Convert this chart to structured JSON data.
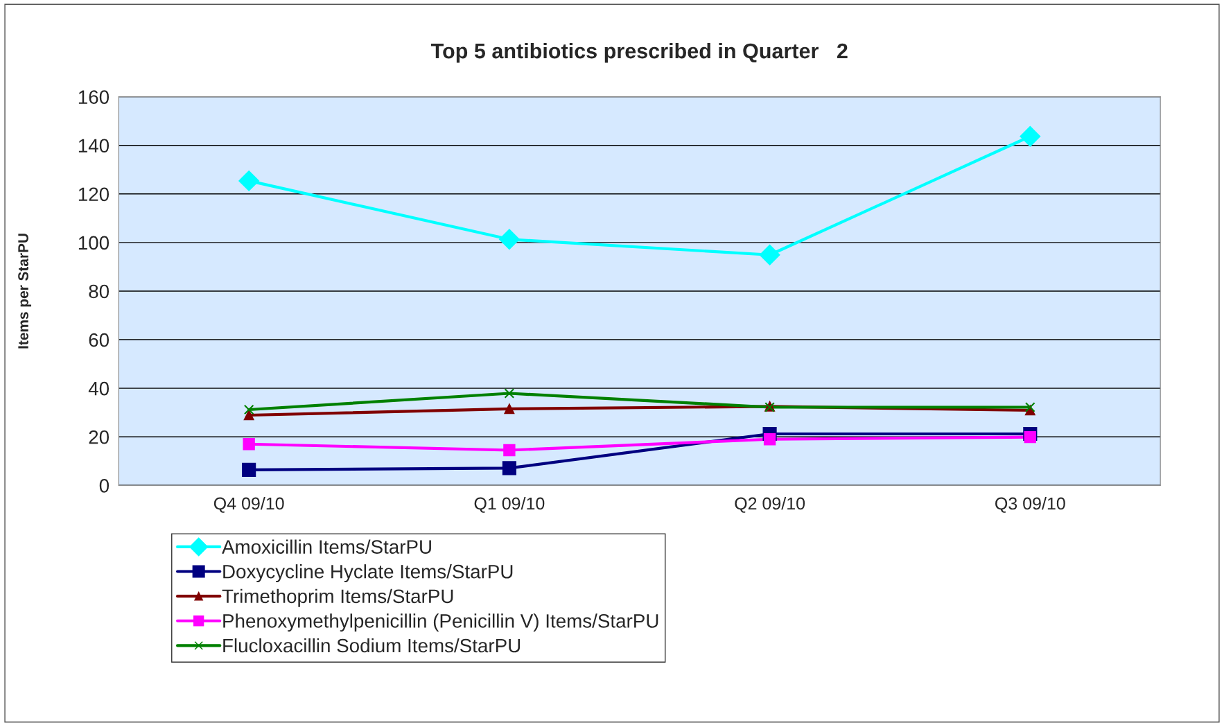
{
  "chart_data": {
    "type": "line",
    "title": "Top 5 antibiotics prescribed in Quarter   2",
    "ylabel": "Items per StarPU",
    "categories": [
      "Q4 09/10",
      "Q1 09/10",
      "Q2 09/10",
      "Q3 09/10"
    ],
    "series": [
      {
        "name": "Amoxicillin Items/StarPU",
        "color": "#00ffff",
        "marker": "diamond",
        "values": [
          125.4,
          101.3,
          94.9,
          143.7
        ]
      },
      {
        "name": "Doxycycline Hyclate Items/StarPU",
        "color": "#000080",
        "marker": "square",
        "values": [
          6.4,
          7.1,
          21.2,
          21.2
        ]
      },
      {
        "name": "Trimethoprim Items/StarPU",
        "color": "#800000",
        "marker": "triangle",
        "values": [
          28.9,
          31.5,
          32.5,
          30.9
        ]
      },
      {
        "name": "Phenoxymethylpenicillin (Penicillin V) Items/StarPU",
        "color": "#ff00ff",
        "marker": "square",
        "values": [
          17.0,
          14.5,
          19.0,
          19.9
        ]
      },
      {
        "name": "Flucloxacillin Sodium Items/StarPU",
        "color": "#008000",
        "marker": "cross",
        "values": [
          31.2,
          37.9,
          32.2,
          32.2
        ]
      }
    ],
    "ylim": [
      0,
      160
    ],
    "yticks": [
      0,
      20,
      40,
      60,
      80,
      100,
      120,
      140,
      160
    ],
    "grid": "y",
    "legend": "bottom",
    "line_style": "solid"
  }
}
